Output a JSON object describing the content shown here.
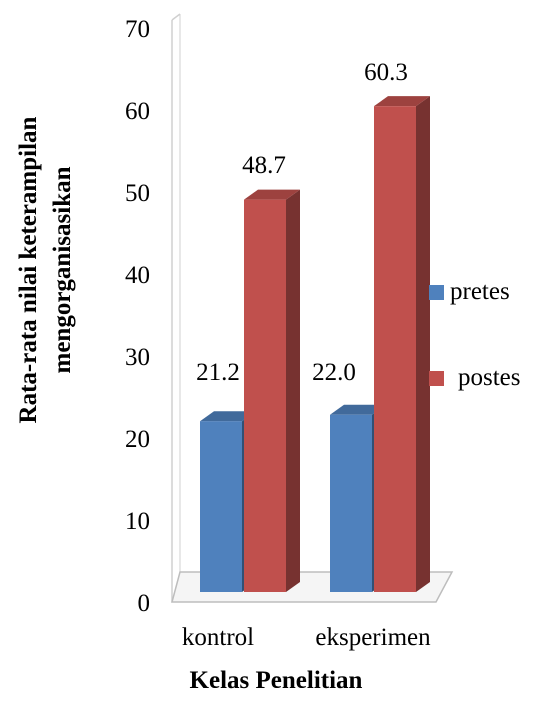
{
  "chart_data": {
    "type": "bar",
    "categories": [
      "kontrol",
      "eksperimen"
    ],
    "series": [
      {
        "name": "pretes",
        "values": [
          21.2,
          22.0
        ],
        "color": "#4F81BD"
      },
      {
        "name": "postes",
        "values": [
          48.7,
          60.3
        ],
        "color": "#C0504D"
      }
    ],
    "data_labels": [
      [
        "21.2",
        "22.0"
      ],
      [
        "48.7",
        "60.3"
      ]
    ],
    "xlabel": "Kelas Penelitian",
    "ylabel_lines": [
      "Rata-rata nilai keterampilan",
      "mengorganisasikan"
    ],
    "ylim": [
      0,
      70
    ],
    "yticks": [
      "0",
      "10",
      "20",
      "30",
      "40",
      "50",
      "60",
      "70"
    ],
    "legend_position": "right",
    "style": "3d-column"
  }
}
